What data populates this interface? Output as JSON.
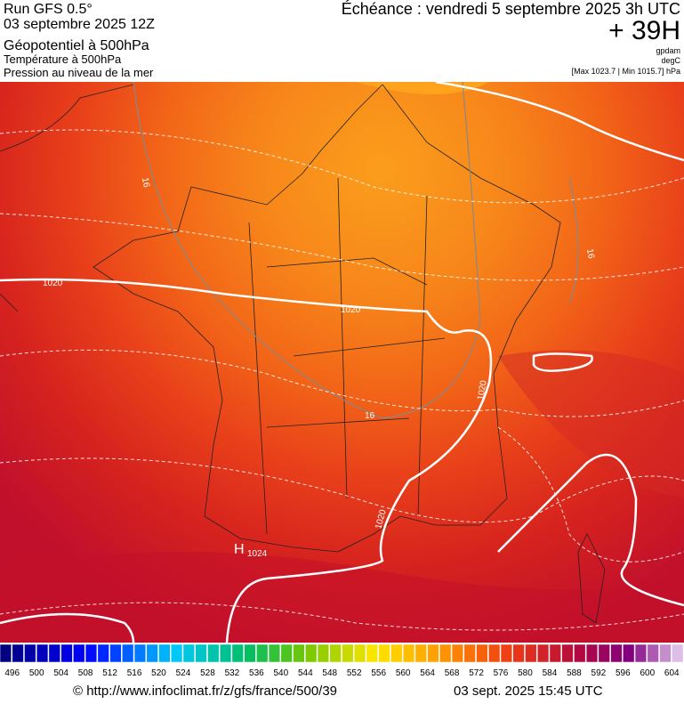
{
  "header": {
    "left": [
      "Run GFS 0.5°",
      "03 septembre 2025 12Z",
      "Géopotentiel à 500hPa",
      "Température à 500hPa",
      "Pression au niveau de la mer"
    ],
    "title": "Échéance : vendredi 5 septembre 2025 3h UTC",
    "lead": "+ 39H",
    "units": [
      "gpdam",
      "degC"
    ],
    "range": "[Max 1023.7 | Min 1015.7] hPa"
  },
  "map": {
    "labels": [
      "1020",
      "1020",
      "1020",
      "1020",
      "16",
      "16",
      "16",
      "H",
      "1024"
    ]
  },
  "colorbar": {
    "ticks": [
      496,
      500,
      504,
      508,
      512,
      516,
      520,
      524,
      528,
      532,
      536,
      540,
      544,
      548,
      552,
      556,
      560,
      564,
      568,
      572,
      576,
      580,
      584,
      588,
      592,
      596,
      600,
      604
    ]
  },
  "footer": {
    "url": "© http://www.infoclimat.fr/z/gfs/france/500/39",
    "date": "03 sept. 2025 15:45 UTC"
  }
}
